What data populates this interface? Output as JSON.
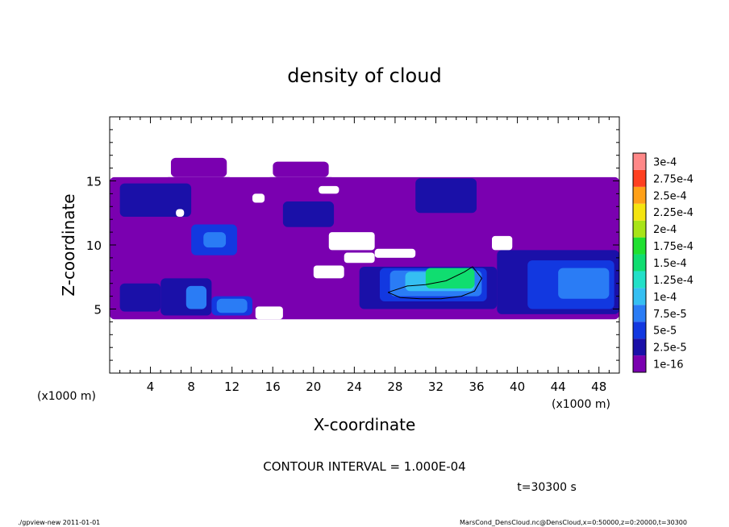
{
  "chart_data": {
    "type": "heatmap",
    "title": "density of cloud",
    "xlabel": "X-coordinate",
    "ylabel": "Z-coordinate",
    "x_unit_left": "(x1000 m)",
    "x_unit_right": "(x1000 m)",
    "xlim": [
      0,
      50
    ],
    "ylim": [
      0,
      20
    ],
    "x_ticks": [
      4,
      8,
      12,
      16,
      20,
      24,
      28,
      32,
      36,
      40,
      44,
      48
    ],
    "y_ticks": [
      5,
      10,
      15
    ],
    "contour_interval_text": "CONTOUR INTERVAL = 1.000E-04",
    "time_text": "t=30300 s",
    "colorbar": {
      "labels": [
        "1e-16",
        "2.5e-5",
        "5e-5",
        "7.5e-5",
        "1e-4",
        "1.25e-4",
        "1.5e-4",
        "1.75e-4",
        "2e-4",
        "2.25e-4",
        "2.5e-4",
        "2.75e-4",
        "3e-4"
      ],
      "colors": [
        "#7a00b0",
        "#1a10a8",
        "#1238e0",
        "#2a7cf5",
        "#35bff2",
        "#22e0c8",
        "#10dd70",
        "#20e030",
        "#a8e418",
        "#f5e410",
        "#ffa018",
        "#ff4020",
        "#ff8888"
      ]
    },
    "regions": [
      {
        "x0": 0,
        "x1": 50,
        "z0": 4.2,
        "z1": 15.3,
        "level": 0
      },
      {
        "x0": 6,
        "x1": 11.5,
        "z0": 15.3,
        "z1": 16.8,
        "level": 0
      },
      {
        "x0": 16,
        "x1": 21.5,
        "z0": 15.3,
        "z1": 16.5,
        "level": 0
      },
      {
        "x0": 1,
        "x1": 8,
        "z0": 12.2,
        "z1": 14.8,
        "level": 1
      },
      {
        "x0": 8,
        "x1": 12.5,
        "z0": 9.2,
        "z1": 11.6,
        "level": 2
      },
      {
        "x0": 9.2,
        "x1": 11.4,
        "z0": 9.8,
        "z1": 11.0,
        "level": 3
      },
      {
        "x0": 17,
        "x1": 22,
        "z0": 11.4,
        "z1": 13.4,
        "level": 1
      },
      {
        "x0": 30,
        "x1": 36,
        "z0": 12.5,
        "z1": 15.2,
        "level": 1
      },
      {
        "x0": 1,
        "x1": 5,
        "z0": 4.8,
        "z1": 7.0,
        "level": 1
      },
      {
        "x0": 5,
        "x1": 10,
        "z0": 4.5,
        "z1": 7.4,
        "level": 1
      },
      {
        "x0": 7.5,
        "x1": 9.5,
        "z0": 5.0,
        "z1": 6.8,
        "level": 3
      },
      {
        "x0": 10,
        "x1": 14,
        "z0": 4.5,
        "z1": 6.0,
        "level": 2
      },
      {
        "x0": 10.5,
        "x1": 13.5,
        "z0": 4.7,
        "z1": 5.8,
        "level": 3
      },
      {
        "x0": 24.5,
        "x1": 38,
        "z0": 5.0,
        "z1": 8.3,
        "level": 1
      },
      {
        "x0": 26.5,
        "x1": 37,
        "z0": 5.6,
        "z1": 8.2,
        "level": 2
      },
      {
        "x0": 27.5,
        "x1": 36.5,
        "z0": 6.0,
        "z1": 8.0,
        "level": 3
      },
      {
        "x0": 29,
        "x1": 35.8,
        "z0": 6.4,
        "z1": 7.9,
        "level": 4
      },
      {
        "x0": 31,
        "x1": 35.8,
        "z0": 6.6,
        "z1": 8.2,
        "level": 6
      },
      {
        "x0": 38,
        "x1": 50,
        "z0": 4.6,
        "z1": 9.6,
        "level": 1
      },
      {
        "x0": 41,
        "x1": 49.5,
        "z0": 5.0,
        "z1": 8.8,
        "level": 2
      },
      {
        "x0": 44,
        "x1": 49,
        "z0": 5.8,
        "z1": 8.2,
        "level": 3
      }
    ],
    "gaps": [
      {
        "x0": 0,
        "x1": 6,
        "z0": 15.3,
        "z1": 16.8
      },
      {
        "x0": 11.5,
        "x1": 16,
        "z0": 15.3,
        "z1": 16.8
      },
      {
        "x0": 21.5,
        "x1": 50,
        "z0": 15.3,
        "z1": 16.8
      },
      {
        "x0": 14,
        "x1": 15.2,
        "z0": 13.3,
        "z1": 14.0
      },
      {
        "x0": 20.5,
        "x1": 22.5,
        "z0": 14.0,
        "z1": 14.6
      },
      {
        "x0": 6.5,
        "x1": 7.3,
        "z0": 12.2,
        "z1": 12.8
      },
      {
        "x0": 21.5,
        "x1": 26,
        "z0": 9.6,
        "z1": 11.0
      },
      {
        "x0": 26,
        "x1": 30,
        "z0": 9.0,
        "z1": 9.7
      },
      {
        "x0": 23,
        "x1": 26,
        "z0": 8.6,
        "z1": 9.4
      },
      {
        "x0": 20,
        "x1": 23,
        "z0": 7.4,
        "z1": 8.4
      },
      {
        "x0": 14.3,
        "x1": 17,
        "z0": 4.2,
        "z1": 5.2
      },
      {
        "x0": 37.5,
        "x1": 39.5,
        "z0": 9.6,
        "z1": 10.7
      }
    ],
    "contours": [
      [
        [
          27.3,
          6.3
        ],
        [
          29.2,
          6.8
        ],
        [
          31,
          6.9
        ],
        [
          33,
          7.2
        ],
        [
          34.8,
          7.9
        ],
        [
          35.6,
          8.3
        ],
        [
          36.5,
          7.4
        ],
        [
          35.8,
          6.4
        ],
        [
          34.5,
          6.0
        ],
        [
          32.5,
          5.8
        ],
        [
          30.5,
          5.8
        ],
        [
          28.5,
          5.9
        ],
        [
          27.3,
          6.3
        ]
      ]
    ]
  },
  "footer": {
    "left": "./gpview-new 2011-01-01",
    "right": "MarsCond_DensCloud.nc@DensCloud,x=0:50000,z=0:20000,t=30300"
  }
}
